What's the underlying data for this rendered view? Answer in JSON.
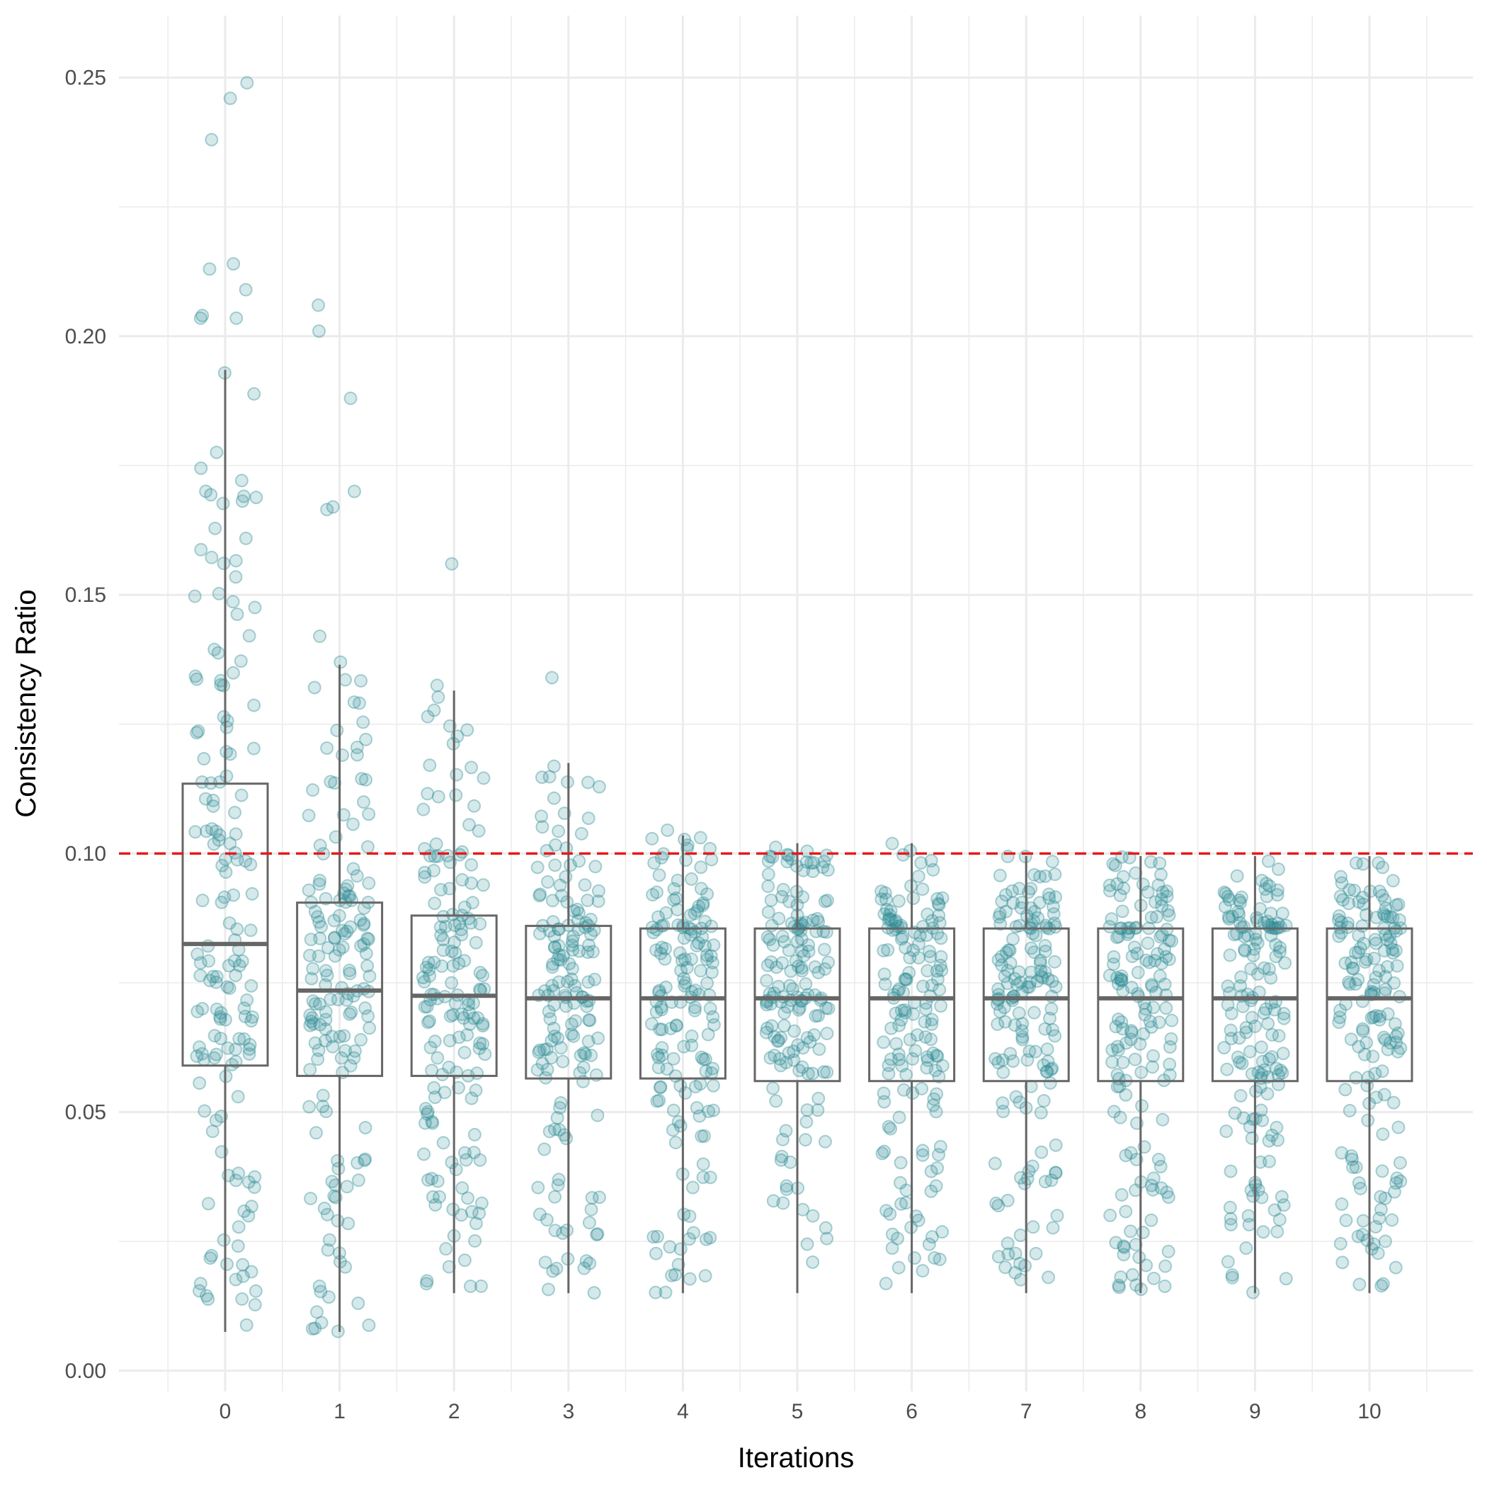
{
  "chart_data": {
    "type": "boxplot-jitter",
    "xlabel": "Iterations",
    "ylabel": "Consistency Ratio",
    "categories": [
      "0",
      "1",
      "2",
      "3",
      "4",
      "5",
      "6",
      "7",
      "8",
      "9",
      "10"
    ],
    "ylim": [
      -0.004,
      0.262
    ],
    "yticks": [
      0.0,
      0.05,
      0.1,
      0.15,
      0.2,
      0.25
    ],
    "ytick_labels": [
      "0.00",
      "0.05",
      "0.10",
      "0.15",
      "0.20",
      "0.25"
    ],
    "threshold": 0.1,
    "colors": {
      "threshold": "#e41a1c",
      "points": "#2e8b94",
      "box": "#666666",
      "grid": "#ebebeb"
    },
    "boxes": [
      {
        "category": "0",
        "whisker_low": 0.0075,
        "q1": 0.059,
        "median": 0.0825,
        "q3": 0.1135,
        "whisker_high": 0.1935
      },
      {
        "category": "1",
        "whisker_low": 0.0075,
        "q1": 0.057,
        "median": 0.0735,
        "q3": 0.0905,
        "whisker_high": 0.1365
      },
      {
        "category": "2",
        "whisker_low": 0.015,
        "q1": 0.057,
        "median": 0.0725,
        "q3": 0.088,
        "whisker_high": 0.1315
      },
      {
        "category": "3",
        "whisker_low": 0.015,
        "q1": 0.0565,
        "median": 0.072,
        "q3": 0.086,
        "whisker_high": 0.1175
      },
      {
        "category": "4",
        "whisker_low": 0.015,
        "q1": 0.0565,
        "median": 0.072,
        "q3": 0.0855,
        "whisker_high": 0.1035
      },
      {
        "category": "5",
        "whisker_low": 0.015,
        "q1": 0.056,
        "median": 0.072,
        "q3": 0.0855,
        "whisker_high": 0.102
      },
      {
        "category": "6",
        "whisker_low": 0.015,
        "q1": 0.056,
        "median": 0.072,
        "q3": 0.0855,
        "whisker_high": 0.102
      },
      {
        "category": "7",
        "whisker_low": 0.015,
        "q1": 0.056,
        "median": 0.072,
        "q3": 0.0855,
        "whisker_high": 0.0995
      },
      {
        "category": "8",
        "whisker_low": 0.015,
        "q1": 0.056,
        "median": 0.072,
        "q3": 0.0855,
        "whisker_high": 0.0995
      },
      {
        "category": "9",
        "whisker_low": 0.015,
        "q1": 0.056,
        "median": 0.072,
        "q3": 0.0855,
        "whisker_high": 0.0995
      },
      {
        "category": "10",
        "whisker_low": 0.015,
        "q1": 0.056,
        "median": 0.072,
        "q3": 0.0855,
        "whisker_high": 0.0995
      }
    ],
    "outliers": [
      {
        "category": "0",
        "values": [
          0.249,
          0.246,
          0.238,
          0.214,
          0.213,
          0.209,
          0.204,
          0.2035,
          0.2035
        ]
      },
      {
        "category": "1",
        "values": [
          0.206,
          0.201,
          0.188,
          0.17,
          0.167,
          0.1665,
          0.142,
          0.137
        ]
      },
      {
        "category": "2",
        "values": [
          0.156,
          0.1325
        ]
      },
      {
        "category": "3",
        "values": [
          0.134
        ]
      },
      {
        "category": "4",
        "values": [
          0.1045
        ]
      }
    ],
    "points_per_category": 160,
    "point_alpha": 0.2
  }
}
